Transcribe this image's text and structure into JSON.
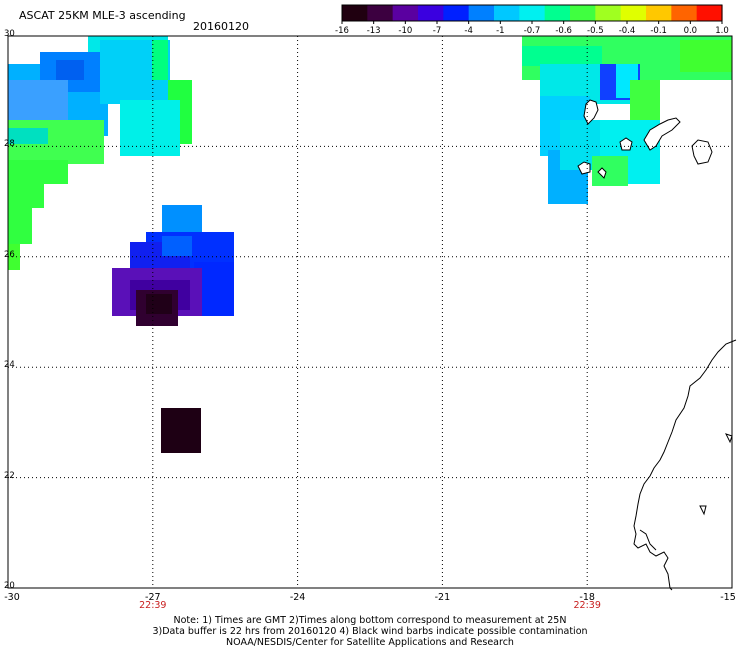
{
  "header": {
    "title": "ASCAT 25KM MLE-3 ascending",
    "date": "20160120"
  },
  "colorbar": {
    "tick_labels": [
      "-16",
      "-13",
      "-10",
      "-7",
      "-4",
      "-1",
      "-0.7",
      "-0.6",
      "-0.5",
      "-0.4",
      "-0.1",
      "0.0",
      "1.0"
    ],
    "colors": [
      "#200010",
      "#3c0040",
      "#5a00a0",
      "#3a00e0",
      "#0020ff",
      "#0080ff",
      "#00c8ff",
      "#00f0f0",
      "#00ff90",
      "#40ff40",
      "#a0ff20",
      "#e0ff00",
      "#ffc800",
      "#ff6400",
      "#ff1000"
    ]
  },
  "axes": {
    "lat_labels": [
      "30",
      "28",
      "26",
      "24",
      "22",
      "20"
    ],
    "lon_labels": [
      "-30",
      "-27",
      "-24",
      "-21",
      "-18",
      "-15"
    ],
    "time_labels": [
      {
        "lon": -27,
        "text": "22:39"
      },
      {
        "lon": -18,
        "text": "22:39"
      }
    ],
    "lat_range": [
      20,
      30
    ],
    "lon_range": [
      -30,
      -15
    ],
    "grid": "dotted"
  },
  "notes": [
    "Note: 1) Times are GMT 2)Times along bottom correspond to measurement at 25N",
    "3)Data buffer is 22 hrs from 20160120 4) Black wind barbs indicate possible contamination",
    "NOAA/NESDIS/Center for Satellite Applications and Research"
  ]
}
